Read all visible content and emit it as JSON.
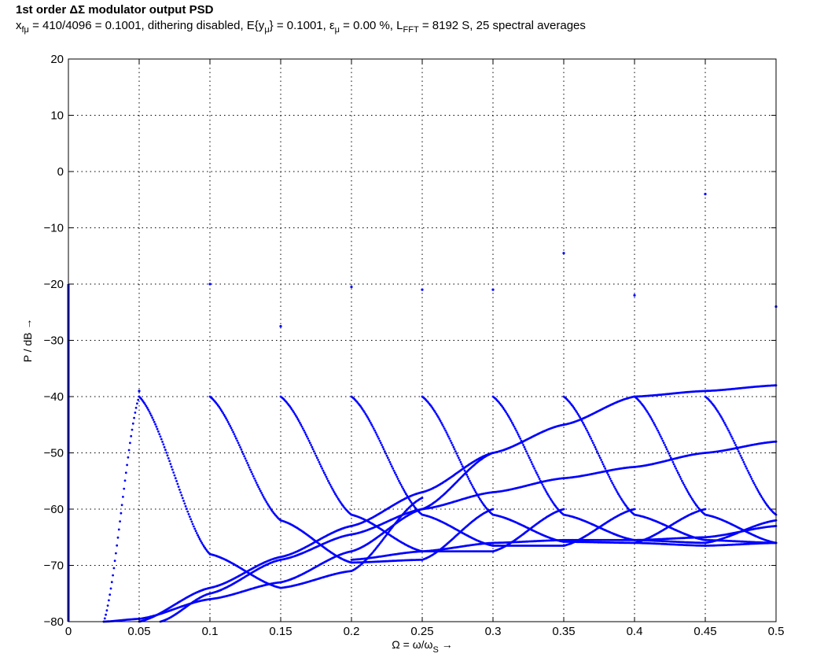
{
  "chart_data": {
    "type": "scatter",
    "title": "1st order ΔΣ modulator output PSD",
    "subtitle": {
      "p1": "x",
      "s1": "fμ",
      "p2": " = 410/4096 = 0.1001, dithering disabled, E{y",
      "s2": "μ",
      "p3": "} = 0.1001, ε",
      "s3": "μ",
      "p4": " = 0.00 %, L",
      "s4": "FFT",
      "p5": " = 8192 S, 25 spectral averages"
    },
    "xlabel": "Ω = ω/ω",
    "xlabel_sub": "S",
    "xlabel_arrow": " →",
    "ylabel": "P / dB →",
    "xlim": [
      0,
      0.5
    ],
    "ylim": [
      -80,
      20
    ],
    "xticks": [
      0,
      0.05,
      0.1,
      0.15,
      0.2,
      0.25,
      0.3,
      0.35,
      0.4,
      0.45,
      0.5
    ],
    "xtick_labels": [
      "0",
      "0.05",
      "0.1",
      "0.15",
      "0.2",
      "0.25",
      "0.3",
      "0.35",
      "0.4",
      "0.45",
      "0.5"
    ],
    "yticks": [
      -80,
      -70,
      -60,
      -50,
      -40,
      -30,
      -20,
      -10,
      0,
      10,
      20
    ],
    "ytick_labels": [
      "−80",
      "−70",
      "−60",
      "−50",
      "−40",
      "−30",
      "−20",
      "−10",
      "0",
      "10",
      "20"
    ],
    "grid": true,
    "marker_color": "#0000ff",
    "dc_line": {
      "x": 0,
      "y_from": -80,
      "y_to": -20
    },
    "peaks": [
      {
        "x": 0.05,
        "y": -39
      },
      {
        "x": 0.1,
        "y": -20
      },
      {
        "x": 0.15,
        "y": -27.5
      },
      {
        "x": 0.2,
        "y": -20.5
      },
      {
        "x": 0.25,
        "y": -21
      },
      {
        "x": 0.3,
        "y": -21
      },
      {
        "x": 0.35,
        "y": -14.5
      },
      {
        "x": 0.4,
        "y": -22
      },
      {
        "x": 0.45,
        "y": -4
      },
      {
        "x": 0.5,
        "y": -24
      }
    ],
    "branches": [
      {
        "x": [
          0.05,
          0.1,
          0.15,
          0.2,
          0.25
        ],
        "y": [
          -40,
          -68,
          -74,
          -71,
          -58
        ]
      },
      {
        "x": [
          0.1,
          0.15,
          0.2,
          0.25,
          0.3
        ],
        "y": [
          -40,
          -62,
          -69.5,
          -69,
          -60
        ]
      },
      {
        "x": [
          0.15,
          0.2,
          0.25,
          0.3,
          0.35
        ],
        "y": [
          -40,
          -61,
          -67.5,
          -67.5,
          -60
        ]
      },
      {
        "x": [
          0.2,
          0.25,
          0.3,
          0.35,
          0.4
        ],
        "y": [
          -40,
          -61,
          -66.5,
          -66.5,
          -60
        ]
      },
      {
        "x": [
          0.25,
          0.3,
          0.35,
          0.4,
          0.45
        ],
        "y": [
          -40,
          -61,
          -65.8,
          -66,
          -60
        ]
      },
      {
        "x": [
          0.3,
          0.35,
          0.4,
          0.45,
          0.5
        ],
        "y": [
          -40,
          -61,
          -65.5,
          -66,
          -62
        ]
      },
      {
        "x": [
          0.35,
          0.4,
          0.45,
          0.5
        ],
        "y": [
          -40,
          -61,
          -65.5,
          -66
        ]
      },
      {
        "x": [
          0.4,
          0.45,
          0.5
        ],
        "y": [
          -40,
          -61,
          -66
        ]
      },
      {
        "x": [
          0.45,
          0.5
        ],
        "y": [
          -40,
          -61
        ]
      },
      {
        "x": [
          0.025,
          0.05
        ],
        "y": [
          -80,
          -40
        ]
      },
      {
        "x": [
          0.025,
          0.05,
          0.1,
          0.15,
          0.2,
          0.25,
          0.3
        ],
        "y": [
          -80,
          -79.5,
          -76,
          -73,
          -67.5,
          -60,
          -50
        ]
      },
      {
        "x": [
          0.05,
          0.1,
          0.15,
          0.2,
          0.25,
          0.3,
          0.35,
          0.4,
          0.45,
          0.5
        ],
        "y": [
          -80,
          -74,
          -68.5,
          -63,
          -57,
          -50,
          -45,
          -40,
          -39,
          -38
        ]
      },
      {
        "x": [
          0.065,
          0.1,
          0.15,
          0.2,
          0.25,
          0.3,
          0.35,
          0.4,
          0.45,
          0.5
        ],
        "y": [
          -80,
          -75,
          -69,
          -64.5,
          -60,
          -57,
          -54.5,
          -52.5,
          -50,
          -48
        ]
      },
      {
        "x": [
          0.2,
          0.25,
          0.3,
          0.35,
          0.4,
          0.45,
          0.5
        ],
        "y": [
          -69,
          -67.5,
          -66,
          -65.5,
          -65.5,
          -65,
          -63
        ]
      },
      {
        "x": [
          0.4,
          0.45,
          0.5
        ],
        "y": [
          -66,
          -66.5,
          -66
        ]
      }
    ]
  }
}
